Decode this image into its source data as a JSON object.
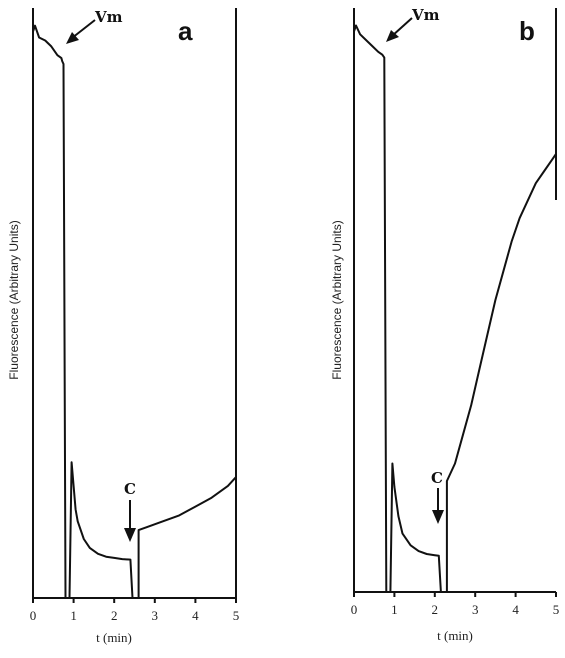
{
  "chart_data": [
    {
      "type": "line",
      "panel": "a",
      "xlabel": "t (min)",
      "ylabel": "Fluorescence (Arbitrary Units)",
      "xlim": [
        0,
        5
      ],
      "x_ticks": [
        "0",
        "1",
        "2",
        "3",
        "4",
        "5"
      ],
      "annotations": [
        {
          "text": "Vm",
          "x": 0.8
        },
        {
          "text": "C",
          "x": 2.45
        }
      ],
      "series": [
        {
          "x": [
            0,
            0.05,
            0.15,
            0.3,
            0.45,
            0.6,
            0.7,
            0.72,
            0.75,
            0.8,
            0.9,
            0.95,
            1.0,
            1.05,
            1.1,
            1.25,
            1.4,
            1.6,
            1.8,
            2.0,
            2.2,
            2.4,
            2.45,
            2.5,
            2.6,
            2.6,
            2.8,
            3.2,
            3.6,
            4.0,
            4.4,
            4.8,
            5.0
          ],
          "y": [
            0.96,
            0.97,
            0.95,
            0.945,
            0.935,
            0.92,
            0.915,
            0.91,
            0.905,
            0.0,
            0.0,
            0.23,
            0.19,
            0.15,
            0.13,
            0.1,
            0.085,
            0.075,
            0.07,
            0.068,
            0.066,
            0.065,
            0.0,
            0.0,
            0.0,
            0.115,
            0.12,
            0.13,
            0.14,
            0.155,
            0.17,
            0.19,
            0.205
          ]
        }
      ]
    },
    {
      "type": "line",
      "panel": "b",
      "xlabel": "t (min)",
      "ylabel": "Fluorescence (Arbitrary Units)",
      "xlim": [
        0,
        5
      ],
      "x_ticks": [
        "0",
        "1",
        "2",
        "3",
        "4",
        "5"
      ],
      "annotations": [
        {
          "text": "Vm",
          "x": 0.75
        },
        {
          "text": "C",
          "x": 2.2
        }
      ],
      "series": [
        {
          "x": [
            0,
            0.05,
            0.15,
            0.3,
            0.45,
            0.6,
            0.7,
            0.75,
            0.8,
            0.85,
            0.9,
            0.95,
            1.0,
            1.1,
            1.2,
            1.4,
            1.6,
            1.8,
            2.0,
            2.1,
            2.15,
            2.25,
            2.3,
            2.3,
            2.5,
            2.7,
            2.9,
            3.1,
            3.3,
            3.5,
            3.7,
            3.9,
            4.1,
            4.3,
            4.5,
            4.7,
            4.9,
            5.0
          ],
          "y": [
            0.96,
            0.97,
            0.955,
            0.945,
            0.935,
            0.925,
            0.92,
            0.915,
            0.0,
            0.0,
            0.0,
            0.22,
            0.18,
            0.13,
            0.1,
            0.08,
            0.07,
            0.065,
            0.063,
            0.062,
            0.0,
            0.0,
            0.0,
            0.19,
            0.22,
            0.27,
            0.32,
            0.38,
            0.44,
            0.5,
            0.55,
            0.6,
            0.64,
            0.67,
            0.7,
            0.72,
            0.74,
            0.75
          ]
        }
      ]
    }
  ],
  "panels": [
    {
      "letter": "a",
      "xlabel": "t (min)",
      "ylabel": "Fluorescence (Arbitrary Units)",
      "vm_label": "Vm",
      "c_label": "C"
    },
    {
      "letter": "b",
      "xlabel": "t (min)",
      "ylabel": "Fluorescence (Arbitrary Units)",
      "vm_label": "Vm",
      "c_label": "C"
    }
  ]
}
